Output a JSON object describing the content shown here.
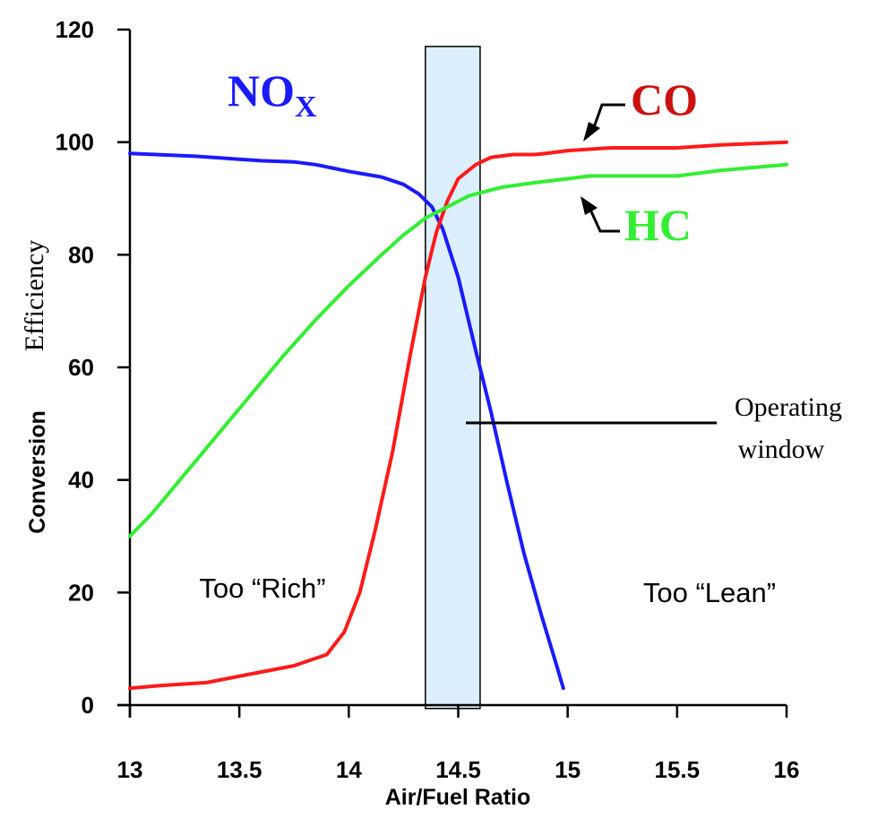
{
  "chart_data": {
    "type": "line",
    "xlabel": "Air/Fuel Ratio",
    "ylabel_part1": "Conversion",
    "ylabel_part2": "Efficiency",
    "xlim": [
      13,
      16
    ],
    "ylim": [
      0,
      120
    ],
    "x_ticks": [
      "13",
      "13.5",
      "14",
      "14.5",
      "15",
      "15.5",
      "16"
    ],
    "y_ticks": [
      "0",
      "20",
      "40",
      "60",
      "80",
      "100",
      "120"
    ],
    "grid": false,
    "series": [
      {
        "name": "NO",
        "name_sub": "X",
        "color": "#1a1aff",
        "points": [
          [
            13.0,
            98.0
          ],
          [
            13.3,
            97.5
          ],
          [
            13.6,
            96.7
          ],
          [
            13.75,
            96.5
          ],
          [
            13.85,
            96.0
          ],
          [
            14.0,
            94.8
          ],
          [
            14.15,
            93.8
          ],
          [
            14.25,
            92.5
          ],
          [
            14.32,
            90.8
          ],
          [
            14.38,
            88.5
          ],
          [
            14.43,
            84.5
          ],
          [
            14.5,
            76.0
          ],
          [
            14.58,
            63.0
          ],
          [
            14.65,
            52.0
          ],
          [
            14.72,
            40.0
          ],
          [
            14.8,
            27.0
          ],
          [
            14.88,
            16.0
          ],
          [
            14.95,
            7.0
          ],
          [
            14.98,
            3.0
          ]
        ]
      },
      {
        "name": "CO",
        "color": "#ff1a1a",
        "points": [
          [
            13.0,
            3.0
          ],
          [
            13.15,
            3.5
          ],
          [
            13.35,
            4.0
          ],
          [
            13.55,
            5.5
          ],
          [
            13.75,
            7.0
          ],
          [
            13.9,
            9.0
          ],
          [
            13.98,
            13.0
          ],
          [
            14.05,
            20.0
          ],
          [
            14.12,
            31.0
          ],
          [
            14.2,
            45.0
          ],
          [
            14.28,
            62.0
          ],
          [
            14.35,
            76.0
          ],
          [
            14.4,
            84.0
          ],
          [
            14.45,
            89.5
          ],
          [
            14.5,
            93.5
          ],
          [
            14.58,
            96.0
          ],
          [
            14.65,
            97.3
          ],
          [
            14.75,
            97.8
          ],
          [
            14.85,
            97.8
          ],
          [
            14.9,
            98.0
          ],
          [
            15.0,
            98.5
          ],
          [
            15.2,
            99.0
          ],
          [
            15.5,
            99.0
          ],
          [
            15.7,
            99.5
          ],
          [
            16.0,
            100.0
          ]
        ]
      },
      {
        "name": "HC",
        "color": "#33ee33",
        "points": [
          [
            13.0,
            30.0
          ],
          [
            13.1,
            34.0
          ],
          [
            13.25,
            41.0
          ],
          [
            13.4,
            48.0
          ],
          [
            13.55,
            55.0
          ],
          [
            13.7,
            62.0
          ],
          [
            13.85,
            68.5
          ],
          [
            14.0,
            74.5
          ],
          [
            14.15,
            80.0
          ],
          [
            14.25,
            83.5
          ],
          [
            14.35,
            86.5
          ],
          [
            14.45,
            88.5
          ],
          [
            14.55,
            90.5
          ],
          [
            14.7,
            92.0
          ],
          [
            14.85,
            92.8
          ],
          [
            15.0,
            93.5
          ],
          [
            15.1,
            94.0
          ],
          [
            15.3,
            94.0
          ],
          [
            15.5,
            94.0
          ],
          [
            15.7,
            95.0
          ],
          [
            16.0,
            96.0
          ]
        ]
      }
    ],
    "operating_window": {
      "x_range": [
        14.35,
        14.6
      ],
      "y_range": [
        0,
        117
      ],
      "fill": "#dcefff"
    },
    "annotations": {
      "operating_window": [
        "Operating",
        "window"
      ],
      "rich": "Too “Rich”",
      "lean": "Too “Lean”"
    }
  }
}
